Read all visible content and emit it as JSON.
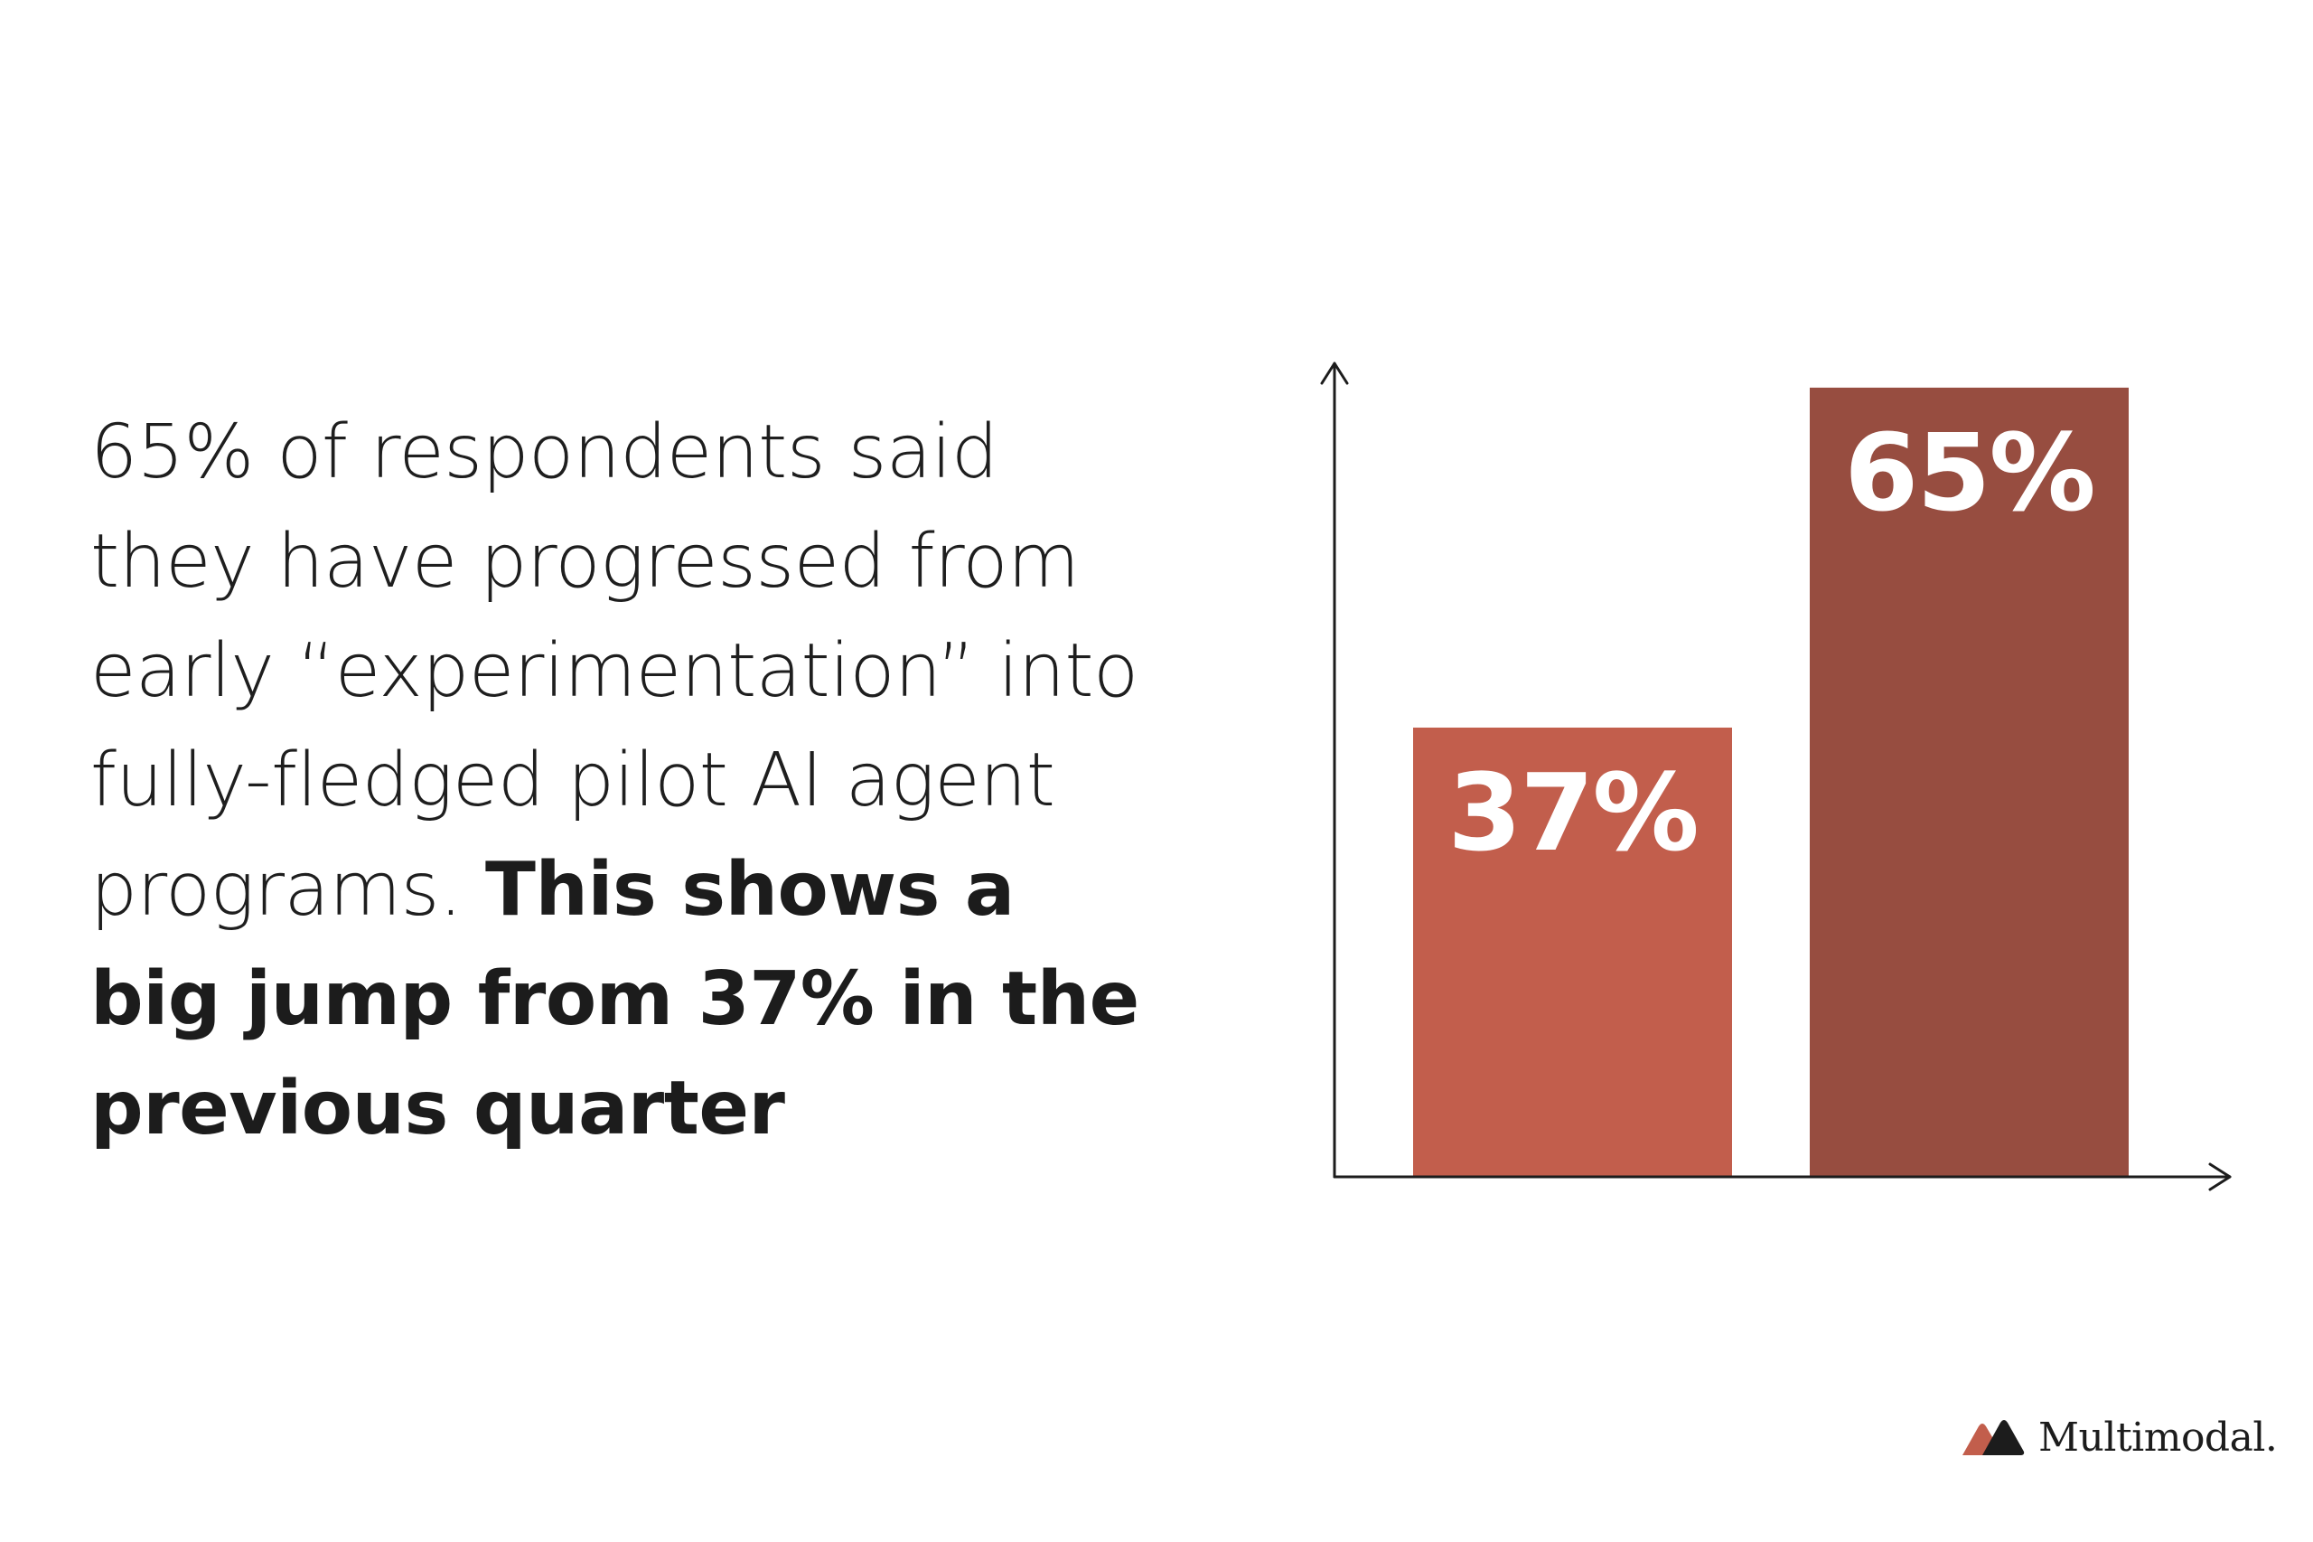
{
  "statement": {
    "lines": [
      {
        "text": "65% of respondents said",
        "bold": ""
      },
      {
        "text": "they have progressed from",
        "bold": ""
      },
      {
        "text": "early “experimentation” into",
        "bold": ""
      },
      {
        "text": "fully-fledged pilot AI agent",
        "bold": ""
      },
      {
        "text": "programs. ",
        "bold": "This shows a"
      },
      {
        "text": "",
        "bold": "big jump from 37% in the"
      },
      {
        "text": "",
        "bold": "previous quarter"
      }
    ]
  },
  "chart_data": {
    "type": "bar",
    "categories": [
      "",
      ""
    ],
    "values": [
      37,
      65
    ],
    "data_labels": [
      "37%",
      "65%"
    ],
    "bar_colors": [
      "#c25e4c",
      "#974d40"
    ],
    "ylim": [
      0,
      67
    ],
    "grid": false,
    "axes": "arrows",
    "title": "",
    "xlabel": "",
    "ylabel": ""
  },
  "brand": {
    "name": "Multimodal.",
    "icon": "multimodal-logo-icon",
    "colors": [
      "#c25e4c",
      "#1c1c1c"
    ]
  }
}
